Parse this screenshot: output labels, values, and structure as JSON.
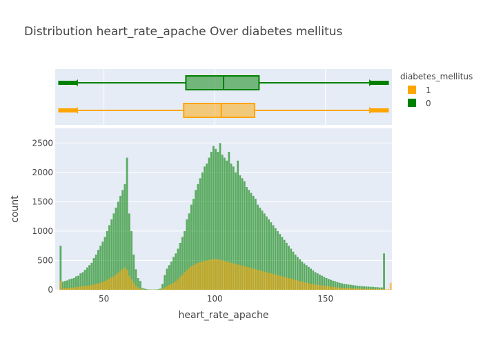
{
  "chart_data": {
    "type": "histogram",
    "title": "Distribution heart_rate_apache Over diabetes mellitus",
    "xlabel": "heart_rate_apache",
    "ylabel": "count",
    "x_range": [
      28,
      180
    ],
    "y_range": [
      0,
      2750
    ],
    "x_ticks": [
      "50",
      "100",
      "150"
    ],
    "y_ticks": [
      "0",
      "500",
      "1000",
      "1500",
      "2000",
      "2500"
    ],
    "barmode": "overlay",
    "grid": true,
    "legend": {
      "title": "diabetes_mellitus",
      "placement": "top-right",
      "items": [
        {
          "label": "1",
          "color": "#FFA500"
        },
        {
          "label": "0",
          "color": "#008000"
        }
      ]
    },
    "bins": {
      "start": 30,
      "width": 1,
      "count_0": [
        750,
        140,
        150,
        160,
        180,
        190,
        200,
        230,
        240,
        280,
        300,
        340,
        380,
        420,
        460,
        540,
        600,
        680,
        750,
        820,
        900,
        1000,
        1100,
        1200,
        1300,
        1400,
        1500,
        1600,
        1700,
        1800,
        2250,
        1300,
        1000,
        600,
        350,
        200,
        150,
        30,
        20,
        10,
        5,
        5,
        5,
        5,
        10,
        20,
        100,
        250,
        360,
        420,
        480,
        560,
        620,
        700,
        800,
        900,
        1000,
        1200,
        1300,
        1450,
        1550,
        1700,
        1800,
        1900,
        2000,
        2100,
        2150,
        2250,
        2350,
        2450,
        2400,
        2350,
        2500,
        2300,
        2250,
        2200,
        2350,
        2150,
        2100,
        2000,
        2200,
        1950,
        1900,
        1850,
        1750,
        1700,
        1650,
        1600,
        1550,
        1450,
        1400,
        1350,
        1300,
        1250,
        1200,
        1150,
        1100,
        1050,
        1000,
        950,
        900,
        850,
        800,
        750,
        700,
        650,
        600,
        560,
        520,
        480,
        450,
        420,
        390,
        360,
        330,
        300,
        280,
        260,
        240,
        220,
        200,
        185,
        170,
        155,
        145,
        130,
        120,
        110,
        100,
        95,
        90,
        85,
        80,
        75,
        70,
        65,
        60,
        60,
        55,
        55,
        50,
        50,
        45,
        45,
        40,
        40,
        620
      ],
      "count_1": [
        150,
        20,
        25,
        30,
        35,
        35,
        40,
        45,
        50,
        55,
        60,
        65,
        70,
        75,
        80,
        90,
        100,
        110,
        120,
        130,
        150,
        170,
        190,
        210,
        230,
        260,
        290,
        320,
        350,
        380,
        340,
        240,
        180,
        120,
        70,
        40,
        25,
        5,
        3,
        2,
        1,
        1,
        1,
        1,
        2,
        4,
        20,
        40,
        60,
        80,
        100,
        120,
        150,
        180,
        220,
        260,
        300,
        340,
        370,
        400,
        420,
        440,
        460,
        470,
        480,
        490,
        500,
        510,
        515,
        520,
        525,
        520,
        510,
        500,
        490,
        480,
        470,
        460,
        450,
        440,
        430,
        420,
        410,
        400,
        390,
        380,
        370,
        360,
        350,
        340,
        330,
        320,
        310,
        300,
        290,
        280,
        270,
        260,
        250,
        240,
        230,
        220,
        210,
        200,
        190,
        180,
        170,
        160,
        150,
        140,
        130,
        120,
        110,
        100,
        95,
        90,
        85,
        80,
        75,
        70,
        65,
        60,
        55,
        50,
        45,
        40,
        38,
        36,
        34,
        32,
        30,
        28,
        26,
        24,
        22,
        20,
        20,
        18,
        18,
        16,
        16,
        15,
        15,
        14,
        14,
        13,
        13,
        12,
        12,
        120
      ]
    },
    "boxplots": [
      {
        "series": "0",
        "color": "#008000",
        "min": 30,
        "q1": 87,
        "median": 104,
        "q3": 120,
        "max": 178
      },
      {
        "series": "1",
        "color": "#FFA500",
        "min": 30,
        "q1": 86,
        "median": 103,
        "q3": 118,
        "max": 178
      }
    ]
  }
}
